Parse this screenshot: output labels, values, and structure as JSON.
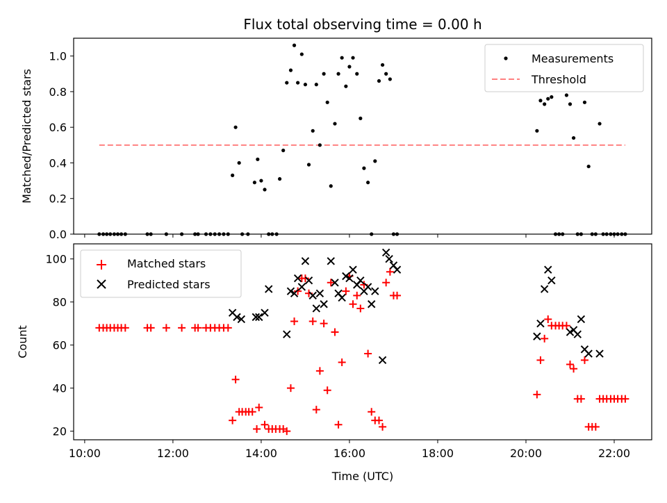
{
  "chart_data": {
    "title": "Flux total observing time = 0.00 h",
    "xlabel": "Time (UTC)",
    "x_tick_labels": [
      "10:00",
      "12:00",
      "14:00",
      "16:00",
      "18:00",
      "20:00",
      "22:00"
    ],
    "x_ticks_hours": [
      10,
      12,
      14,
      16,
      18,
      20,
      22
    ],
    "xlim_hours": [
      9.75,
      22.85
    ],
    "panels": [
      {
        "type": "scatter",
        "ylabel": "Matched/Predicted stars",
        "ylim": [
          0,
          1.1
        ],
        "y_ticks": [
          0,
          0.2,
          0.4,
          0.6,
          0.8,
          1.0
        ],
        "y_tick_labels": [
          "0.0",
          "0.2",
          "0.4",
          "0.6",
          "0.8",
          "1.0"
        ],
        "legend_position": "upper right",
        "threshold": {
          "name": "Threshold",
          "value": 0.5,
          "x_range_hours": [
            10.33,
            22.25
          ],
          "color": "#ff8080"
        },
        "series": [
          {
            "name": "Measurements",
            "marker": "dot",
            "color": "#000000",
            "x_hours": [
              10.33,
              10.42,
              10.5,
              10.58,
              10.67,
              10.75,
              10.83,
              10.92,
              11.42,
              11.5,
              11.85,
              12.2,
              12.5,
              12.57,
              12.75,
              12.85,
              12.95,
              13.05,
              13.15,
              13.25,
              13.35,
              13.42,
              13.5,
              13.57,
              13.7,
              13.85,
              13.92,
              14.0,
              14.08,
              14.17,
              14.25,
              14.35,
              14.42,
              14.5,
              14.58,
              14.67,
              14.75,
              14.83,
              14.92,
              15.0,
              15.08,
              15.17,
              15.25,
              15.33,
              15.42,
              15.5,
              15.58,
              15.67,
              15.75,
              15.83,
              15.92,
              16.0,
              16.08,
              16.17,
              16.25,
              16.33,
              16.42,
              16.5,
              16.58,
              16.67,
              16.75,
              16.83,
              16.92,
              17.0,
              17.08,
              20.25,
              20.33,
              20.42,
              20.5,
              20.58,
              20.67,
              20.75,
              20.83,
              20.92,
              21.0,
              21.08,
              21.17,
              21.25,
              21.33,
              21.42,
              21.5,
              21.58,
              21.67,
              21.75,
              21.83,
              21.92,
              22.0,
              22.08,
              22.17,
              22.25
            ],
            "values": [
              0,
              0,
              0,
              0,
              0,
              0,
              0,
              0,
              0,
              0,
              0,
              0,
              0,
              0,
              0,
              0,
              0,
              0,
              0,
              0,
              0.33,
              0.6,
              0.4,
              0,
              0,
              0.29,
              0.42,
              0.3,
              0.25,
              0,
              0,
              0,
              0.31,
              0.47,
              0.85,
              0.92,
              1.06,
              0.85,
              1.01,
              0.84,
              0.39,
              0.58,
              0.84,
              0.5,
              0.9,
              0.74,
              0.27,
              0.62,
              0.9,
              0.99,
              0.83,
              0.94,
              0.99,
              0.9,
              0.65,
              0.37,
              0.29,
              0,
              0.41,
              0.86,
              0.95,
              0.9,
              0.87,
              0,
              0,
              0.58,
              0.75,
              0.73,
              0.76,
              0.77,
              0,
              0,
              0,
              0.78,
              0.73,
              0.54,
              0,
              0,
              0.74,
              0.38,
              0,
              0,
              0.62,
              0,
              0,
              0,
              0,
              0,
              0,
              0
            ]
          }
        ]
      },
      {
        "type": "scatter",
        "ylabel": "Count",
        "ylim": [
          16,
          107
        ],
        "y_ticks": [
          20,
          40,
          60,
          80,
          100
        ],
        "y_tick_labels": [
          "20",
          "40",
          "60",
          "80",
          "100"
        ],
        "legend_position": "upper left",
        "series": [
          {
            "name": "Matched stars",
            "marker": "plus",
            "color": "#ff0000",
            "x_hours": [
              10.33,
              10.42,
              10.5,
              10.58,
              10.67,
              10.75,
              10.83,
              10.92,
              11.42,
              11.5,
              11.85,
              12.2,
              12.5,
              12.57,
              12.75,
              12.85,
              12.95,
              13.05,
              13.15,
              13.25,
              13.35,
              13.42,
              13.5,
              13.57,
              13.65,
              13.72,
              13.8,
              13.9,
              13.95,
              14.08,
              14.17,
              14.25,
              14.33,
              14.42,
              14.5,
              14.58,
              14.67,
              14.75,
              14.83,
              14.92,
              15.0,
              15.08,
              15.17,
              15.25,
              15.33,
              15.42,
              15.5,
              15.58,
              15.67,
              15.75,
              15.83,
              15.92,
              16.0,
              16.08,
              16.17,
              16.25,
              16.33,
              16.42,
              16.5,
              16.58,
              16.67,
              16.75,
              16.83,
              16.92,
              17.0,
              17.08,
              20.25,
              20.33,
              20.42,
              20.5,
              20.58,
              20.67,
              20.75,
              20.83,
              20.92,
              21.0,
              21.08,
              21.17,
              21.25,
              21.33,
              21.42,
              21.5,
              21.58,
              21.67,
              21.75,
              21.83,
              21.92,
              22.0,
              22.08,
              22.17,
              22.25
            ],
            "values": [
              68,
              68,
              68,
              68,
              68,
              68,
              68,
              68,
              68,
              68,
              68,
              68,
              68,
              68,
              68,
              68,
              68,
              68,
              68,
              68,
              25,
              44,
              29,
              29,
              29,
              29,
              29,
              21,
              31,
              23,
              21,
              21,
              21,
              21,
              21,
              20,
              40,
              71,
              85,
              91,
              91,
              84,
              71,
              30,
              48,
              70,
              39,
              89,
              66,
              23,
              52,
              85,
              92,
              79,
              83,
              77,
              88,
              56,
              29,
              25,
              25,
              22,
              89,
              94,
              83,
              83,
              37,
              53,
              63,
              72,
              69,
              69,
              69,
              69,
              69,
              51,
              49,
              35,
              35,
              53,
              22,
              22,
              22,
              35,
              35,
              35,
              35,
              35,
              35,
              35,
              35
            ]
          },
          {
            "name": "Predicted stars",
            "marker": "x",
            "color": "#000000",
            "x_hours": [
              13.35,
              13.45,
              13.55,
              13.88,
              13.95,
              14.08,
              14.17,
              14.58,
              14.67,
              14.75,
              14.83,
              14.92,
              15.0,
              15.08,
              15.17,
              15.25,
              15.33,
              15.42,
              15.58,
              15.67,
              15.75,
              15.83,
              15.92,
              16.0,
              16.08,
              16.17,
              16.25,
              16.33,
              16.42,
              16.5,
              16.58,
              16.75,
              16.83,
              16.9,
              17.0,
              17.08,
              20.25,
              20.33,
              20.42,
              20.5,
              20.58,
              21.0,
              21.08,
              21.17,
              21.25,
              21.33,
              21.42,
              21.67
            ],
            "values": [
              75,
              73,
              72,
              73,
              73,
              75,
              86,
              65,
              85,
              84,
              91,
              87,
              99,
              90,
              83,
              77,
              84,
              79,
              99,
              89,
              84,
              82,
              92,
              91,
              95,
              88,
              90,
              85,
              87,
              79,
              85,
              53,
              103,
              100,
              97,
              95,
              64,
              70,
              86,
              95,
              90,
              66,
              67,
              65,
              72,
              58,
              56,
              56
            ]
          }
        ]
      }
    ]
  }
}
